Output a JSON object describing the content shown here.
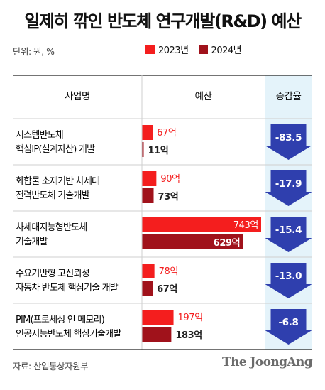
{
  "title": "일제히 깎인 반도체 연구개발(R&D) 예산",
  "unit": "단위: 원, %",
  "legend": [
    {
      "label": "2023년",
      "color": "#f41e1e"
    },
    {
      "label": "2024년",
      "color": "#a0121b"
    }
  ],
  "headers": {
    "business": "사업명",
    "budget": "예산",
    "change": "증감율"
  },
  "source": "자료: 산업통상자원부",
  "brand": "The JoongAng",
  "colors": {
    "y2023": "#f41e1e",
    "y2024": "#a0121b",
    "arrow": "#2f3fae",
    "change_bg": "#e4f3fa",
    "line": "#cfcfcf"
  },
  "chart_data": {
    "type": "bar",
    "title": "일제히 깎인 반도체 연구개발(R&D) 예산",
    "unit": "단위: 원, %",
    "categories": [
      [
        "시스템반도체",
        "핵심IP(설계자산) 개발"
      ],
      [
        "화합물 소재기반 차세대",
        "전력반도체 기술개발"
      ],
      [
        "차세대지능형반도체",
        "기술개발"
      ],
      [
        "수요기반형 고신뢰성",
        "자동차 반도체 핵심기술 개발"
      ],
      [
        "PIM(프로세싱 인 메모리)",
        "인공지능반도체 핵심기술개발"
      ]
    ],
    "series": [
      {
        "name": "2023년",
        "values": [
          67,
          90,
          743,
          78,
          197
        ],
        "labels": [
          "67억",
          "90억",
          "743억",
          "78억",
          "197억"
        ]
      },
      {
        "name": "2024년",
        "values": [
          11,
          73,
          629,
          67,
          183
        ],
        "labels": [
          "11억",
          "73억",
          "629억",
          "67억",
          "183억"
        ]
      }
    ],
    "change_rate": [
      -83.5,
      -17.9,
      -15.4,
      -13.0,
      -6.8
    ],
    "change_labels": [
      "-83.5",
      "-17.9",
      "-15.4",
      "-13.0",
      "-6.8"
    ]
  }
}
